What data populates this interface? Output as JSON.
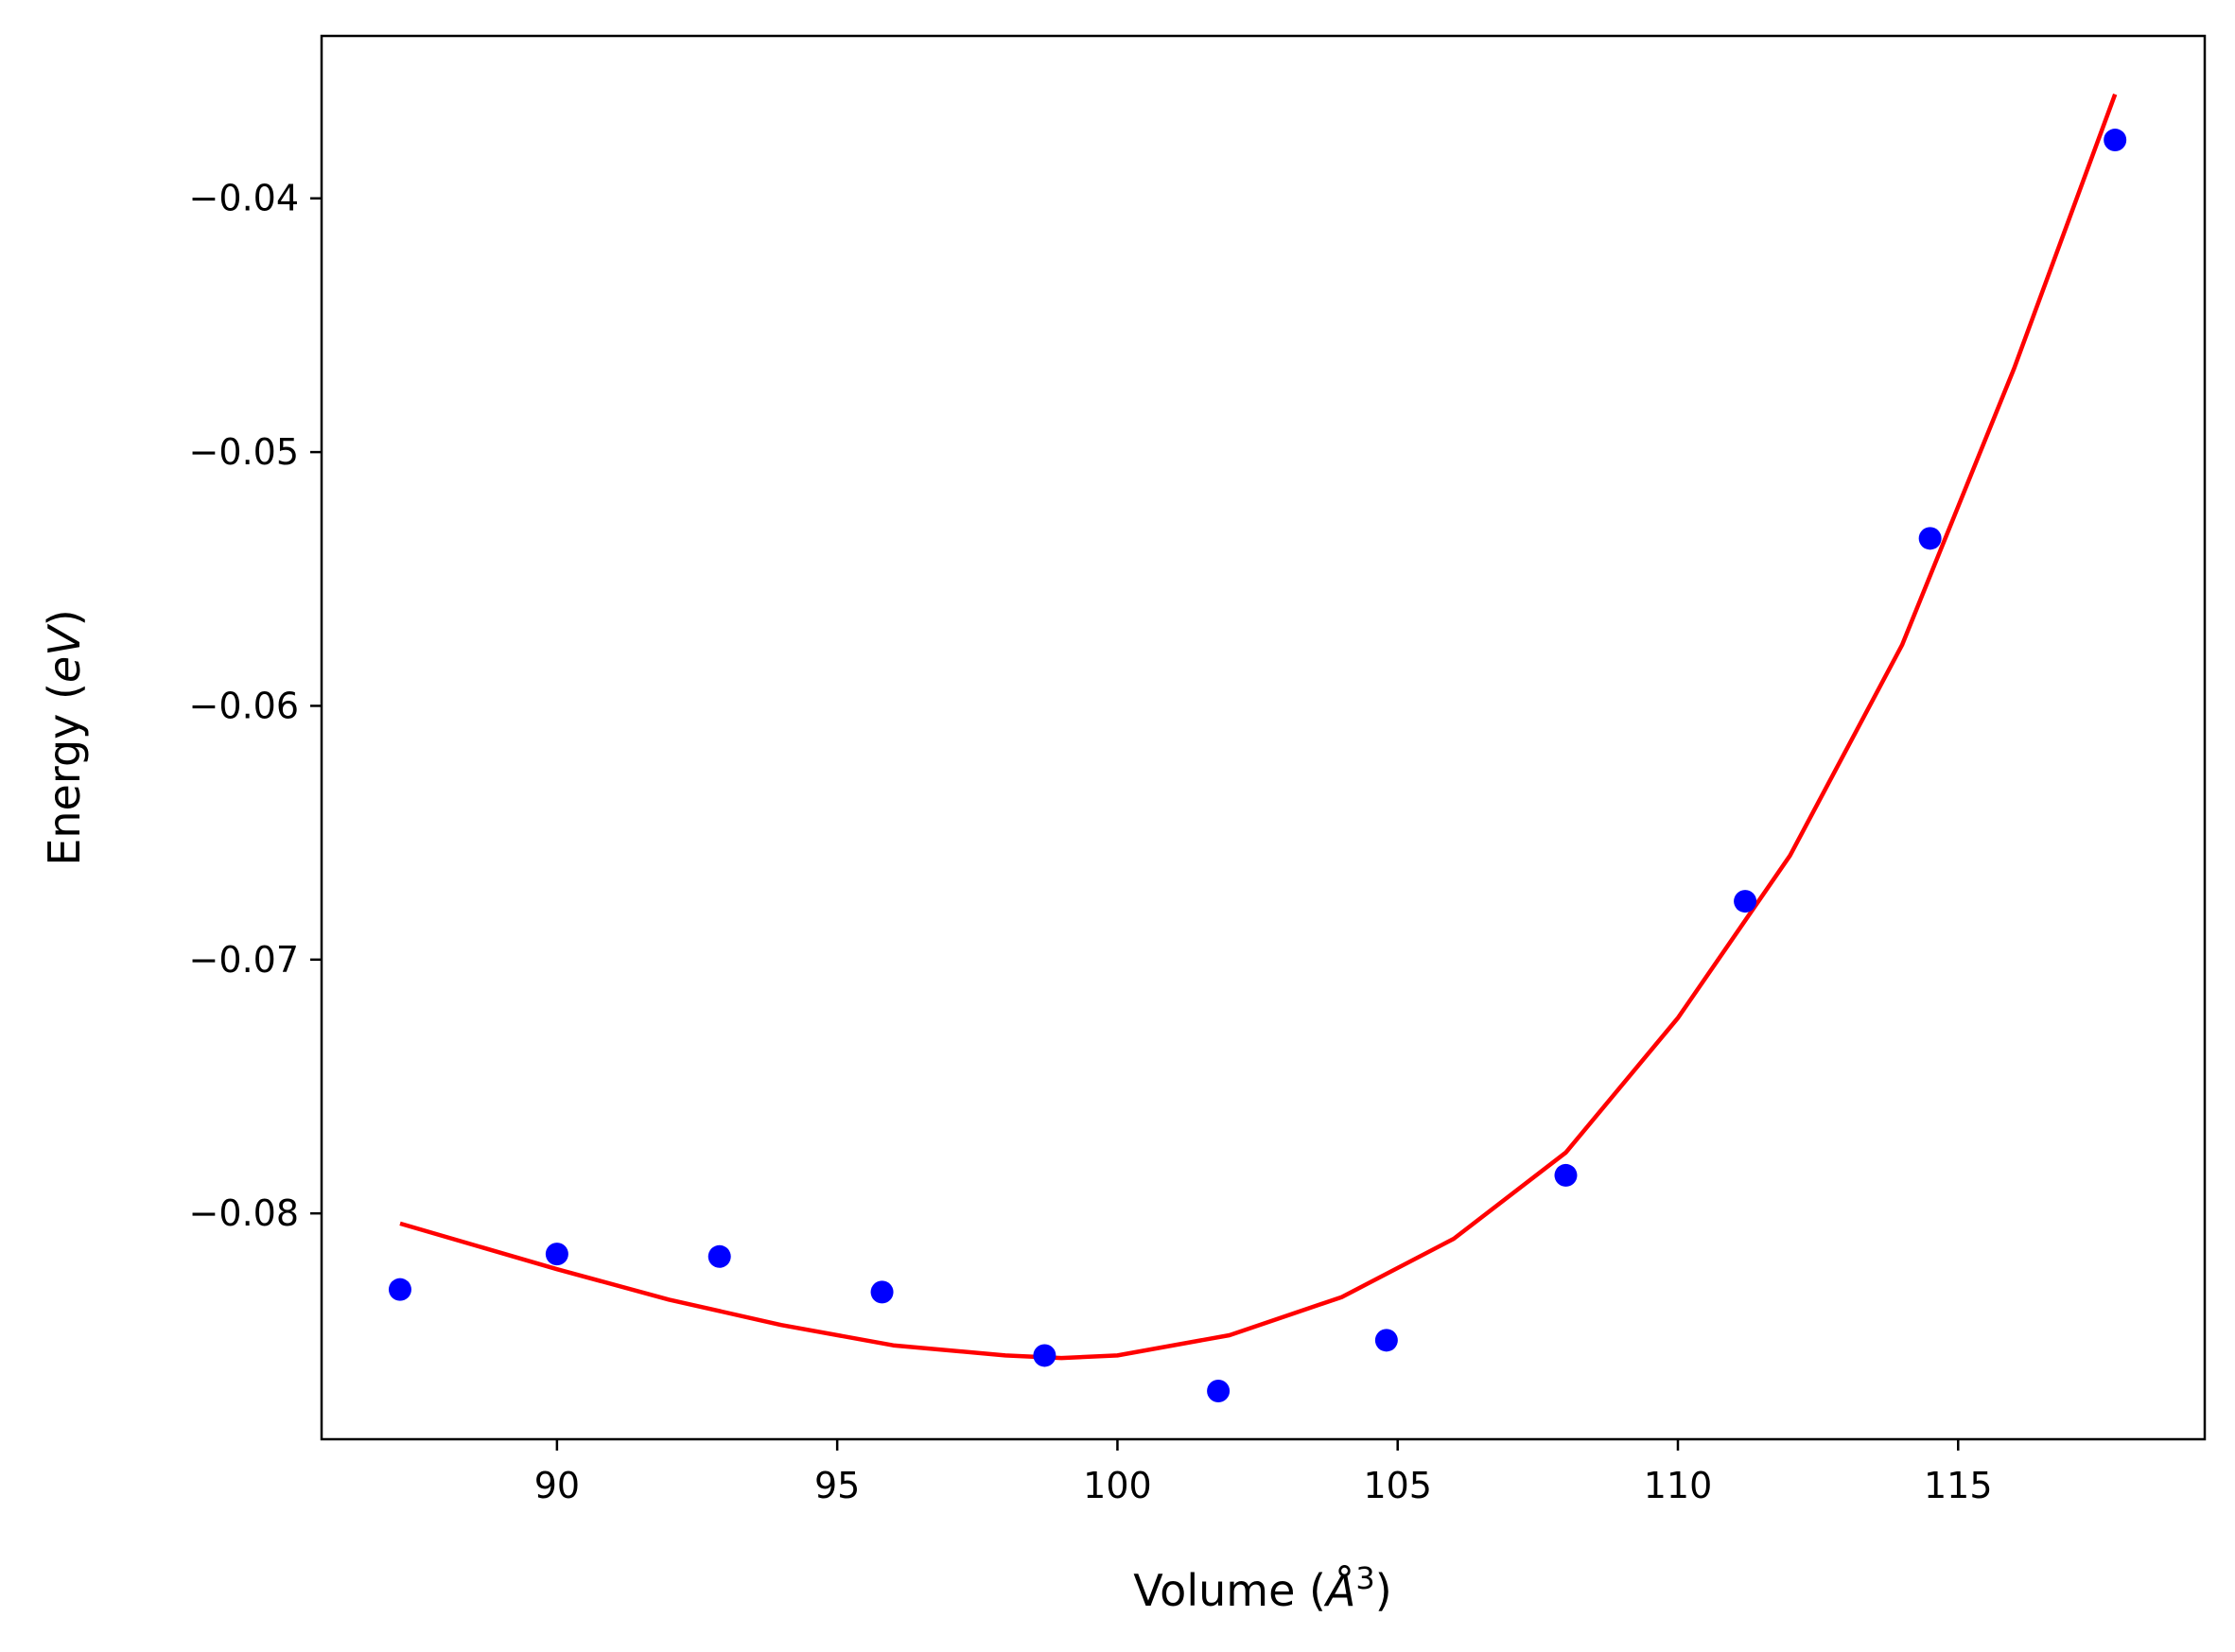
{
  "chart_data": {
    "type": "scatter",
    "xlabel": {
      "parts": [
        {
          "text": "Volume (",
          "italic": false,
          "sup": false
        },
        {
          "text": "Å",
          "italic": true,
          "sup": false
        },
        {
          "text": "3",
          "italic": false,
          "sup": true
        },
        {
          "text": ")",
          "italic": false,
          "sup": false
        }
      ]
    },
    "ylabel": {
      "parts": [
        {
          "text": "Energy (",
          "italic": false
        },
        {
          "text": "eV",
          "italic": true
        },
        {
          "text": ")",
          "italic": false
        }
      ]
    },
    "xlim": [
      85.8,
      119.4
    ],
    "ylim": [
      -0.0889,
      -0.0336
    ],
    "xticks": [
      {
        "value": 90,
        "label": "90"
      },
      {
        "value": 95,
        "label": "95"
      },
      {
        "value": 100,
        "label": "100"
      },
      {
        "value": 105,
        "label": "105"
      },
      {
        "value": 110,
        "label": "110"
      },
      {
        "value": 115,
        "label": "115"
      }
    ],
    "yticks": [
      {
        "value": -0.04,
        "label": "−0.04"
      },
      {
        "value": -0.05,
        "label": "−0.05"
      },
      {
        "value": -0.06,
        "label": "−0.06"
      },
      {
        "value": -0.07,
        "label": "−0.07"
      },
      {
        "value": -0.08,
        "label": "−0.08"
      }
    ],
    "grid": false,
    "series": [
      {
        "kind": "scatter",
        "color": "#0000ff",
        "points": [
          {
            "x": 87.2,
            "y": -0.083
          },
          {
            "x": 90.0,
            "y": -0.0816
          },
          {
            "x": 92.9,
            "y": -0.0817
          },
          {
            "x": 95.8,
            "y": -0.0831
          },
          {
            "x": 98.7,
            "y": -0.0856
          },
          {
            "x": 101.8,
            "y": -0.087
          },
          {
            "x": 104.8,
            "y": -0.085
          },
          {
            "x": 108.0,
            "y": -0.0785
          },
          {
            "x": 111.2,
            "y": -0.0677
          },
          {
            "x": 114.5,
            "y": -0.0534
          },
          {
            "x": 117.8,
            "y": -0.0377
          }
        ]
      },
      {
        "kind": "line",
        "color": "#ff0000",
        "points": [
          {
            "x": 87.2,
            "y": -0.0804
          },
          {
            "x": 90.0,
            "y": -0.0822
          },
          {
            "x": 92.0,
            "y": -0.0834
          },
          {
            "x": 94.0,
            "y": -0.0844
          },
          {
            "x": 96.0,
            "y": -0.0852
          },
          {
            "x": 98.0,
            "y": -0.0856
          },
          {
            "x": 99.0,
            "y": -0.0857
          },
          {
            "x": 100.0,
            "y": -0.0856
          },
          {
            "x": 102.0,
            "y": -0.0848
          },
          {
            "x": 104.0,
            "y": -0.0833
          },
          {
            "x": 106.0,
            "y": -0.081
          },
          {
            "x": 108.0,
            "y": -0.0776
          },
          {
            "x": 110.0,
            "y": -0.0723
          },
          {
            "x": 112.0,
            "y": -0.0659
          },
          {
            "x": 114.0,
            "y": -0.0576
          },
          {
            "x": 116.0,
            "y": -0.0467
          },
          {
            "x": 117.8,
            "y": -0.0359
          }
        ]
      }
    ]
  }
}
